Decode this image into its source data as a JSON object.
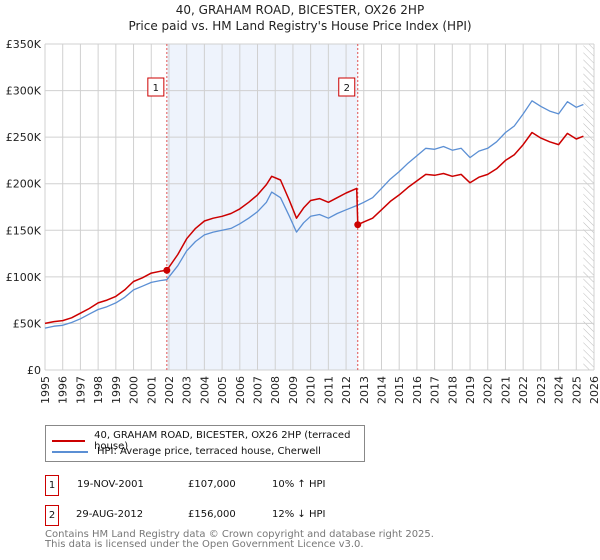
{
  "chart_data": {
    "type": "line",
    "title": "40, GRAHAM ROAD, BICESTER, OX26 2HP",
    "subtitle": "Price paid vs. HM Land Registry's House Price Index (HPI)",
    "xlim": [
      1995,
      2026
    ],
    "ylim": [
      0,
      350000
    ],
    "y_ticks": [
      {
        "v": 0,
        "label": "£0"
      },
      {
        "v": 50000,
        "label": "£50K"
      },
      {
        "v": 100000,
        "label": "£100K"
      },
      {
        "v": 150000,
        "label": "£150K"
      },
      {
        "v": 200000,
        "label": "£200K"
      },
      {
        "v": 250000,
        "label": "£250K"
      },
      {
        "v": 300000,
        "label": "£300K"
      },
      {
        "v": 350000,
        "label": "£350K"
      }
    ],
    "x_ticks": [
      "1995",
      "1996",
      "1997",
      "1998",
      "1999",
      "2000",
      "2001",
      "2002",
      "2003",
      "2004",
      "2005",
      "2006",
      "2007",
      "2008",
      "2009",
      "2010",
      "2011",
      "2012",
      "2013",
      "2014",
      "2015",
      "2016",
      "2017",
      "2018",
      "2019",
      "2020",
      "2021",
      "2022",
      "2023",
      "2024",
      "2025",
      "2026"
    ],
    "grid": true,
    "shaded_range": [
      2001.88,
      2012.66
    ],
    "forecast_hatch_from": 2025.4,
    "series": [
      {
        "name": "40, GRAHAM ROAD, BICESTER, OX26 2HP (terraced house)",
        "color": "#cc0000",
        "x": [
          1995,
          1995.5,
          1996,
          1996.5,
          1997,
          1997.5,
          1998,
          1998.5,
          1999,
          1999.5,
          2000,
          2000.5,
          2001,
          2001.5,
          2001.88,
          2002.5,
          2003,
          2003.5,
          2004,
          2004.5,
          2005,
          2005.5,
          2006,
          2006.5,
          2007,
          2007.5,
          2007.8,
          2008.3,
          2008.8,
          2009.2,
          2009.6,
          2010,
          2010.5,
          2011,
          2011.5,
          2012,
          2012.6,
          2012.66,
          2013,
          2013.5,
          2014,
          2014.5,
          2015,
          2015.5,
          2016,
          2016.5,
          2017,
          2017.5,
          2018,
          2018.5,
          2019,
          2019.5,
          2020,
          2020.5,
          2021,
          2021.5,
          2022,
          2022.5,
          2023,
          2023.5,
          2024,
          2024.5,
          2025,
          2025.4
        ],
        "y": [
          50,
          52,
          53,
          56,
          61,
          66,
          72,
          75,
          79,
          86,
          95,
          99,
          104,
          106,
          107,
          124,
          141,
          152,
          160,
          163,
          165,
          168,
          173,
          180,
          188,
          199,
          208,
          204,
          182,
          163,
          174,
          182,
          184,
          180,
          185,
          190,
          195,
          156,
          159,
          163,
          172,
          181,
          188,
          196,
          203,
          210,
          209,
          211,
          208,
          210,
          201,
          207,
          210,
          216,
          225,
          231,
          242,
          255,
          249,
          245,
          242,
          254,
          248,
          251
        ]
      },
      {
        "name": "HPI: Average price, terraced house, Cherwell",
        "color": "#5b8fd4",
        "x": [
          1995,
          1995.5,
          1996,
          1996.5,
          1997,
          1997.5,
          1998,
          1998.5,
          1999,
          1999.5,
          2000,
          2000.5,
          2001,
          2001.5,
          2001.88,
          2002.5,
          2003,
          2003.5,
          2004,
          2004.5,
          2005,
          2005.5,
          2006,
          2006.5,
          2007,
          2007.5,
          2007.8,
          2008.3,
          2008.8,
          2009.2,
          2009.6,
          2010,
          2010.5,
          2011,
          2011.5,
          2012,
          2012.66,
          2013,
          2013.5,
          2014,
          2014.5,
          2015,
          2015.5,
          2016,
          2016.5,
          2017,
          2017.5,
          2018,
          2018.5,
          2019,
          2019.5,
          2020,
          2020.5,
          2021,
          2021.5,
          2022,
          2022.5,
          2023,
          2023.5,
          2024,
          2024.5,
          2025,
          2025.4
        ],
        "y": [
          45,
          47,
          48,
          51,
          55,
          60,
          65,
          68,
          72,
          78,
          86,
          90,
          94,
          96,
          97,
          112,
          128,
          138,
          145,
          148,
          150,
          152,
          157,
          163,
          170,
          180,
          191,
          185,
          165,
          148,
          158,
          165,
          167,
          163,
          168,
          172,
          177,
          180,
          185,
          195,
          205,
          213,
          222,
          230,
          238,
          237,
          240,
          236,
          238,
          228,
          235,
          238,
          245,
          255,
          262,
          275,
          289,
          283,
          278,
          275,
          288,
          282,
          285
        ]
      }
    ],
    "y_unit_multiplier": 1000,
    "markers": [
      {
        "label": "1",
        "x": 2001.88,
        "y": 107000
      },
      {
        "label": "2",
        "x": 2012.66,
        "y": 156000
      }
    ]
  },
  "legend": {
    "items": [
      {
        "label": "40, GRAHAM ROAD, BICESTER, OX26 2HP (terraced house)",
        "color": "#cc0000"
      },
      {
        "label": "HPI: Average price, terraced house, Cherwell",
        "color": "#5b8fd4"
      }
    ]
  },
  "transactions": [
    {
      "num": "1",
      "date": "19-NOV-2001",
      "price": "£107,000",
      "hpi": "10% ↑ HPI"
    },
    {
      "num": "2",
      "date": "29-AUG-2012",
      "price": "£156,000",
      "hpi": "12% ↓ HPI"
    }
  ],
  "footer": {
    "line1": "Contains HM Land Registry data © Crown copyright and database right 2025.",
    "line2": "This data is licensed under the Open Government Licence v3.0."
  }
}
